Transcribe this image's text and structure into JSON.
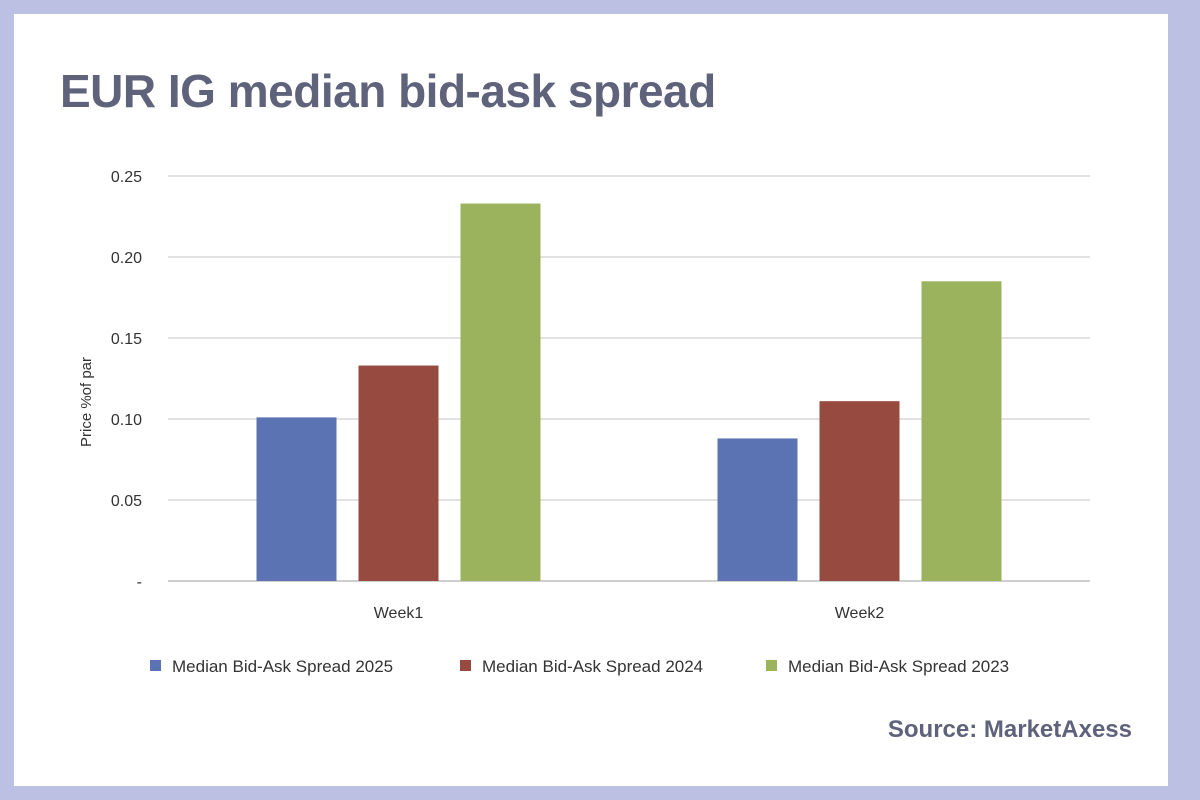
{
  "chart_data": {
    "type": "bar",
    "title": "EUR IG median bid-ask spread",
    "ylabel": "Price %of par",
    "xlabel": "",
    "categories": [
      "Week1",
      "Week2"
    ],
    "ylim": [
      0,
      0.25
    ],
    "yticks": [
      {
        "value": 0,
        "label": "-"
      },
      {
        "value": 0.05,
        "label": "0.05"
      },
      {
        "value": 0.1,
        "label": "0.10"
      },
      {
        "value": 0.15,
        "label": "0.15"
      },
      {
        "value": 0.2,
        "label": "0.20"
      },
      {
        "value": 0.25,
        "label": "0.25"
      }
    ],
    "grid": true,
    "legend_position": "bottom",
    "series": [
      {
        "name": "Median Bid-Ask Spread 2025",
        "color": "#5b73b3",
        "values": [
          0.101,
          0.088
        ]
      },
      {
        "name": "Median Bid-Ask Spread 2024",
        "color": "#974a40",
        "values": [
          0.133,
          0.111
        ]
      },
      {
        "name": "Median Bid-Ask Spread 2023",
        "color": "#9bb35c",
        "values": [
          0.233,
          0.185
        ]
      }
    ]
  },
  "source": "Source: MarketAxess"
}
